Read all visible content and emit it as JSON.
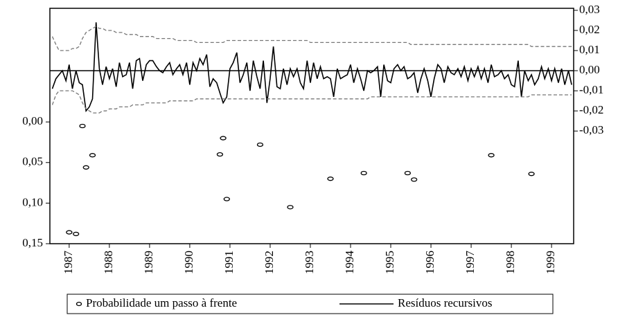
{
  "chart_data": {
    "type": "line",
    "x": [
      1986.58,
      1986.67,
      1986.75,
      1986.83,
      1986.92,
      1987,
      1987.08,
      1987.17,
      1987.25,
      1987.33,
      1987.42,
      1987.5,
      1987.58,
      1987.67,
      1987.75,
      1987.83,
      1987.92,
      1988,
      1988.08,
      1988.17,
      1988.25,
      1988.33,
      1988.42,
      1988.5,
      1988.58,
      1988.67,
      1988.75,
      1988.83,
      1988.92,
      1989,
      1989.08,
      1989.17,
      1989.25,
      1989.33,
      1989.42,
      1989.5,
      1989.58,
      1989.67,
      1989.75,
      1989.83,
      1989.92,
      1990,
      1990.08,
      1990.17,
      1990.25,
      1990.33,
      1990.42,
      1990.5,
      1990.58,
      1990.67,
      1990.75,
      1990.83,
      1990.92,
      1991,
      1991.08,
      1991.17,
      1991.25,
      1991.33,
      1991.42,
      1991.5,
      1991.58,
      1991.67,
      1991.75,
      1991.83,
      1991.92,
      1992,
      1992.08,
      1992.17,
      1992.25,
      1992.33,
      1992.42,
      1992.5,
      1992.58,
      1992.67,
      1992.75,
      1992.83,
      1992.92,
      1993,
      1993.08,
      1993.17,
      1993.25,
      1993.33,
      1993.42,
      1993.5,
      1993.58,
      1993.67,
      1993.75,
      1993.83,
      1993.92,
      1994,
      1994.08,
      1994.17,
      1994.25,
      1994.33,
      1994.42,
      1994.5,
      1994.58,
      1994.67,
      1994.75,
      1994.83,
      1994.92,
      1995,
      1995.08,
      1995.17,
      1995.25,
      1995.33,
      1995.42,
      1995.5,
      1995.58,
      1995.67,
      1995.75,
      1995.83,
      1995.92,
      1996,
      1996.08,
      1996.17,
      1996.25,
      1996.33,
      1996.42,
      1996.5,
      1996.58,
      1996.67,
      1996.75,
      1996.83,
      1996.92,
      1997,
      1997.08,
      1997.17,
      1997.25,
      1997.33,
      1997.42,
      1997.5,
      1997.58,
      1997.67,
      1997.75,
      1997.83,
      1997.92,
      1998,
      1998.08,
      1998.17,
      1998.25,
      1998.33,
      1998.42,
      1998.5,
      1998.58,
      1998.67,
      1998.75,
      1998.83,
      1998.92,
      1999,
      1999.08,
      1999.17,
      1999.25,
      1999.33,
      1999.42,
      1999.5
    ],
    "xlim": [
      1986.52,
      1999.55
    ],
    "xticks": [
      1987,
      1988,
      1989,
      1990,
      1991,
      1992,
      1993,
      1994,
      1995,
      1996,
      1997,
      1998,
      1999
    ],
    "ylim": [
      0.15,
      -0.14
    ],
    "yticks": [
      {
        "value": 0,
        "label": "0,00"
      },
      {
        "value": 0.05,
        "label": "0,05"
      },
      {
        "value": 0.1,
        "label": "0,10"
      },
      {
        "value": 0.15,
        "label": "0,15"
      }
    ],
    "y2lim": [
      -0.086,
      0.031
    ],
    "y2ticks": [
      {
        "value": 0.03,
        "label": "0,03"
      },
      {
        "value": 0.02,
        "label": "0,02"
      },
      {
        "value": 0.01,
        "label": "0,01"
      },
      {
        "value": 0,
        "label": "0,00"
      },
      {
        "value": -0.01,
        "label": "-0,01"
      },
      {
        "value": -0.02,
        "label": "-0,02"
      },
      {
        "value": -0.03,
        "label": "-0,03"
      }
    ],
    "legend": "bottom",
    "series": [
      {
        "name": "Probabilidade um passo à frente",
        "type": "scatter",
        "color": "#000000",
        "x": [
          1987.0,
          1987.17,
          1987.33,
          1987.42,
          1987.58,
          1990.75,
          1990.83,
          1990.92,
          1991.75,
          1992.5,
          1993.5,
          1994.33,
          1995.42,
          1995.58,
          1997.5,
          1998.5
        ],
        "values": [
          0.136,
          0.138,
          0.005,
          0.056,
          0.041,
          0.04,
          0.02,
          0.095,
          0.028,
          0.105,
          0.07,
          0.063,
          0.063,
          0.071,
          0.041,
          0.064
        ]
      },
      {
        "name": "Resíduos recursivos",
        "color": "#000000",
        "axis": "y2",
        "values": [
          -0.009,
          -0.004,
          -0.002,
          0.0,
          -0.005,
          0.003,
          -0.009,
          0.0,
          -0.006,
          -0.007,
          -0.02,
          -0.018,
          -0.014,
          0.024,
          0.001,
          -0.007,
          0.002,
          -0.004,
          0.001,
          -0.008,
          0.004,
          -0.003,
          -0.002,
          0.004,
          -0.009,
          0.005,
          0.006,
          -0.005,
          0.003,
          0.005,
          0.005,
          0.002,
          0.0,
          -0.001,
          0.002,
          0.004,
          -0.002,
          0.001,
          0.003,
          -0.002,
          0.004,
          -0.007,
          0.004,
          0.0,
          0.006,
          0.003,
          0.008,
          -0.008,
          -0.004,
          -0.006,
          -0.011,
          -0.016,
          -0.013,
          0.001,
          0.004,
          0.009,
          -0.006,
          -0.002,
          0.004,
          -0.01,
          0.005,
          -0.003,
          -0.009,
          0.005,
          -0.016,
          -0.004,
          0.012,
          -0.008,
          -0.009,
          0.001,
          -0.007,
          0.001,
          -0.003,
          0.001,
          -0.006,
          -0.009,
          0.005,
          -0.006,
          0.004,
          -0.004,
          0.002,
          -0.004,
          -0.003,
          -0.004,
          -0.013,
          0.001,
          -0.004,
          -0.003,
          -0.002,
          0.003,
          -0.006,
          0.001,
          -0.004,
          -0.01,
          0.0,
          -0.001,
          0.0,
          0.002,
          -0.013,
          0.003,
          -0.005,
          -0.006,
          0.001,
          0.003,
          0.0,
          0.002,
          -0.004,
          -0.003,
          -0.001,
          -0.011,
          -0.004,
          0.001,
          -0.005,
          -0.013,
          -0.004,
          0.003,
          0.001,
          -0.006,
          0.002,
          -0.001,
          -0.002,
          0.001,
          -0.003,
          0.002,
          -0.005,
          0.001,
          -0.003,
          0.002,
          -0.004,
          0.001,
          -0.006,
          0.003,
          -0.003,
          -0.002,
          0.0,
          -0.004,
          -0.002,
          -0.007,
          -0.008,
          0.005,
          -0.013,
          0.0,
          -0.005,
          -0.002,
          -0.007,
          -0.004,
          0.002,
          -0.004,
          0.001,
          -0.005,
          0.001,
          -0.006,
          0.001,
          -0.007,
          0.0,
          -0.007
        ]
      },
      {
        "color": "#777777",
        "dash": true,
        "axis": "y2",
        "values": [
          0.017,
          0.013,
          0.01,
          0.01,
          0.01,
          0.01,
          0.011,
          0.011,
          0.012,
          0.016,
          0.019,
          0.02,
          0.021,
          0.022,
          0.021,
          0.021,
          0.02,
          0.02,
          0.02,
          0.019,
          0.019,
          0.019,
          0.018,
          0.018,
          0.018,
          0.018,
          0.017,
          0.017,
          0.017,
          0.017,
          0.017,
          0.016,
          0.016,
          0.016,
          0.016,
          0.016,
          0.016,
          0.015,
          0.015,
          0.015,
          0.015,
          0.015,
          0.015,
          0.014,
          0.014,
          0.014,
          0.014,
          0.014,
          0.014,
          0.014,
          0.014,
          0.014,
          0.015,
          0.015,
          0.015,
          0.015,
          0.015,
          0.015,
          0.015,
          0.015,
          0.015,
          0.015,
          0.015,
          0.015,
          0.015,
          0.015,
          0.015,
          0.015,
          0.015,
          0.015,
          0.015,
          0.015,
          0.015,
          0.015,
          0.015,
          0.015,
          0.015,
          0.014,
          0.014,
          0.014,
          0.014,
          0.014,
          0.014,
          0.014,
          0.014,
          0.014,
          0.014,
          0.014,
          0.014,
          0.014,
          0.014,
          0.014,
          0.014,
          0.014,
          0.014,
          0.014,
          0.014,
          0.014,
          0.014,
          0.014,
          0.014,
          0.014,
          0.014,
          0.014,
          0.014,
          0.014,
          0.014,
          0.013,
          0.013,
          0.013,
          0.013,
          0.013,
          0.013,
          0.013,
          0.013,
          0.013,
          0.013,
          0.013,
          0.013,
          0.013,
          0.013,
          0.013,
          0.013,
          0.013,
          0.013,
          0.013,
          0.013,
          0.013,
          0.013,
          0.013,
          0.013,
          0.013,
          0.013,
          0.013,
          0.013,
          0.013,
          0.013,
          0.013,
          0.013,
          0.013,
          0.013,
          0.013,
          0.013,
          0.012,
          0.012,
          0.012,
          0.012,
          0.012,
          0.012,
          0.012,
          0.012,
          0.012,
          0.012,
          0.012,
          0.012,
          0.012
        ]
      },
      {
        "color": "#777777",
        "dash": true,
        "axis": "y2",
        "values": [
          -0.017,
          -0.012,
          -0.01,
          -0.01,
          -0.01,
          -0.01,
          -0.01,
          -0.011,
          -0.012,
          -0.016,
          -0.019,
          -0.02,
          -0.021,
          -0.021,
          -0.021,
          -0.02,
          -0.02,
          -0.019,
          -0.019,
          -0.019,
          -0.018,
          -0.018,
          -0.018,
          -0.018,
          -0.017,
          -0.017,
          -0.017,
          -0.017,
          -0.016,
          -0.016,
          -0.016,
          -0.016,
          -0.016,
          -0.016,
          -0.016,
          -0.015,
          -0.015,
          -0.015,
          -0.015,
          -0.015,
          -0.015,
          -0.015,
          -0.015,
          -0.014,
          -0.014,
          -0.014,
          -0.014,
          -0.014,
          -0.014,
          -0.014,
          -0.014,
          -0.014,
          -0.014,
          -0.014,
          -0.014,
          -0.014,
          -0.014,
          -0.014,
          -0.014,
          -0.014,
          -0.014,
          -0.014,
          -0.014,
          -0.014,
          -0.014,
          -0.014,
          -0.014,
          -0.014,
          -0.014,
          -0.014,
          -0.014,
          -0.014,
          -0.014,
          -0.014,
          -0.014,
          -0.014,
          -0.014,
          -0.014,
          -0.014,
          -0.014,
          -0.014,
          -0.014,
          -0.014,
          -0.014,
          -0.014,
          -0.014,
          -0.014,
          -0.014,
          -0.014,
          -0.014,
          -0.014,
          -0.014,
          -0.014,
          -0.014,
          -0.014,
          -0.013,
          -0.013,
          -0.013,
          -0.013,
          -0.013,
          -0.013,
          -0.013,
          -0.013,
          -0.013,
          -0.013,
          -0.013,
          -0.013,
          -0.013,
          -0.013,
          -0.013,
          -0.013,
          -0.013,
          -0.013,
          -0.013,
          -0.013,
          -0.013,
          -0.013,
          -0.013,
          -0.013,
          -0.013,
          -0.013,
          -0.013,
          -0.013,
          -0.013,
          -0.013,
          -0.013,
          -0.013,
          -0.013,
          -0.013,
          -0.013,
          -0.013,
          -0.013,
          -0.013,
          -0.013,
          -0.013,
          -0.013,
          -0.013,
          -0.013,
          -0.013,
          -0.013,
          -0.013,
          -0.013,
          -0.013,
          -0.012,
          -0.012,
          -0.012,
          -0.012,
          -0.012,
          -0.012,
          -0.012,
          -0.012,
          -0.012,
          -0.012,
          -0.012,
          -0.012,
          -0.012
        ]
      }
    ]
  }
}
